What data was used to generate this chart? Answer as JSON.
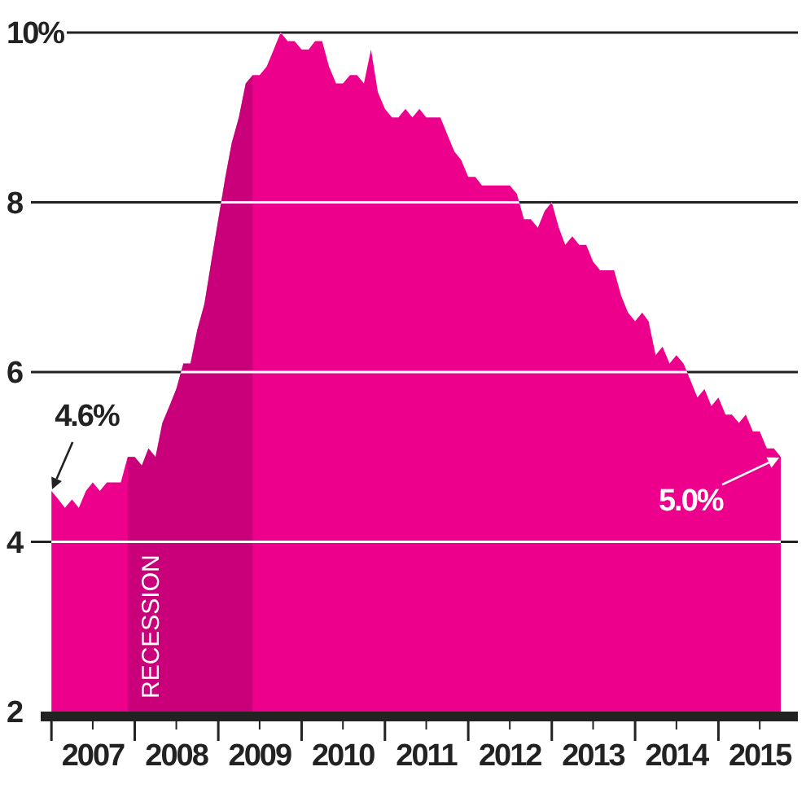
{
  "chart_data": {
    "type": "area",
    "x": [
      "2007-01",
      "2007-02",
      "2007-03",
      "2007-04",
      "2007-05",
      "2007-06",
      "2007-07",
      "2007-08",
      "2007-09",
      "2007-10",
      "2007-11",
      "2007-12",
      "2008-01",
      "2008-02",
      "2008-03",
      "2008-04",
      "2008-05",
      "2008-06",
      "2008-07",
      "2008-08",
      "2008-09",
      "2008-10",
      "2008-11",
      "2008-12",
      "2009-01",
      "2009-02",
      "2009-03",
      "2009-04",
      "2009-05",
      "2009-06",
      "2009-07",
      "2009-08",
      "2009-09",
      "2009-10",
      "2009-11",
      "2009-12",
      "2010-01",
      "2010-02",
      "2010-03",
      "2010-04",
      "2010-05",
      "2010-06",
      "2010-07",
      "2010-08",
      "2010-09",
      "2010-10",
      "2010-11",
      "2010-12",
      "2011-01",
      "2011-02",
      "2011-03",
      "2011-04",
      "2011-05",
      "2011-06",
      "2011-07",
      "2011-08",
      "2011-09",
      "2011-10",
      "2011-11",
      "2011-12",
      "2012-01",
      "2012-02",
      "2012-03",
      "2012-04",
      "2012-05",
      "2012-06",
      "2012-07",
      "2012-08",
      "2012-09",
      "2012-10",
      "2012-11",
      "2012-12",
      "2013-01",
      "2013-02",
      "2013-03",
      "2013-04",
      "2013-05",
      "2013-06",
      "2013-07",
      "2013-08",
      "2013-09",
      "2013-10",
      "2013-11",
      "2013-12",
      "2014-01",
      "2014-02",
      "2014-03",
      "2014-04",
      "2014-05",
      "2014-06",
      "2014-07",
      "2014-08",
      "2014-09",
      "2014-10",
      "2014-11",
      "2014-12",
      "2015-01",
      "2015-02",
      "2015-03",
      "2015-04",
      "2015-05",
      "2015-06",
      "2015-07",
      "2015-08",
      "2015-09",
      "2015-10"
    ],
    "series": [
      {
        "color": "#ec008c",
        "values": [
          4.6,
          4.5,
          4.4,
          4.5,
          4.4,
          4.6,
          4.7,
          4.6,
          4.7,
          4.7,
          4.7,
          5.0,
          5.0,
          4.9,
          5.1,
          5.0,
          5.4,
          5.6,
          5.8,
          6.1,
          6.1,
          6.5,
          6.8,
          7.3,
          7.8,
          8.3,
          8.7,
          9.0,
          9.4,
          9.5,
          9.5,
          9.6,
          9.8,
          10.0,
          9.9,
          9.9,
          9.8,
          9.8,
          9.9,
          9.9,
          9.6,
          9.4,
          9.4,
          9.5,
          9.5,
          9.4,
          9.8,
          9.3,
          9.1,
          9.0,
          9.0,
          9.1,
          9.0,
          9.1,
          9.0,
          9.0,
          9.0,
          8.8,
          8.6,
          8.5,
          8.3,
          8.3,
          8.2,
          8.2,
          8.2,
          8.2,
          8.2,
          8.1,
          7.8,
          7.8,
          7.7,
          7.9,
          8.0,
          7.7,
          7.5,
          7.6,
          7.5,
          7.5,
          7.3,
          7.2,
          7.2,
          7.2,
          6.9,
          6.7,
          6.6,
          6.7,
          6.6,
          6.2,
          6.3,
          6.1,
          6.2,
          6.1,
          5.9,
          5.7,
          5.8,
          5.6,
          5.7,
          5.5,
          5.5,
          5.4,
          5.5,
          5.3,
          5.3,
          5.1,
          5.1,
          5.0
        ]
      }
    ],
    "xlim": [
      "2006-11-15",
      "2015-12-15"
    ],
    "xticks": [
      {
        "value": "2007-01",
        "label": null
      },
      {
        "value": "2007-07",
        "label": "2007"
      },
      {
        "value": "2008-01",
        "label": null
      },
      {
        "value": "2008-07",
        "label": "2008"
      },
      {
        "value": "2009-01",
        "label": null
      },
      {
        "value": "2009-07",
        "label": "2009"
      },
      {
        "value": "2010-01",
        "label": null
      },
      {
        "value": "2010-07",
        "label": "2010"
      },
      {
        "value": "2011-01",
        "label": null
      },
      {
        "value": "2011-07",
        "label": "2011"
      },
      {
        "value": "2012-01",
        "label": null
      },
      {
        "value": "2012-07",
        "label": "2012"
      },
      {
        "value": "2013-01",
        "label": null
      },
      {
        "value": "2013-07",
        "label": "2013"
      },
      {
        "value": "2014-01",
        "label": null
      },
      {
        "value": "2014-07",
        "label": "2014"
      },
      {
        "value": "2015-01",
        "label": null
      },
      {
        "value": "2015-07",
        "label": "2015"
      }
    ],
    "ylim": [
      2,
      10
    ],
    "yticks": [
      2,
      4,
      6,
      8,
      {
        "value": 10,
        "label": "10%"
      }
    ],
    "grid": "y",
    "bands": [
      {
        "axis": "x",
        "from": "2007-12",
        "to": "2009-06",
        "label": "RECESSION",
        "color": "#c9007a"
      }
    ],
    "annotations": [
      {
        "text": "4.6%",
        "x": "2007-01",
        "y": 4.6
      },
      {
        "text": "5.0%",
        "x": "2015-10",
        "y": 5.0
      }
    ]
  }
}
